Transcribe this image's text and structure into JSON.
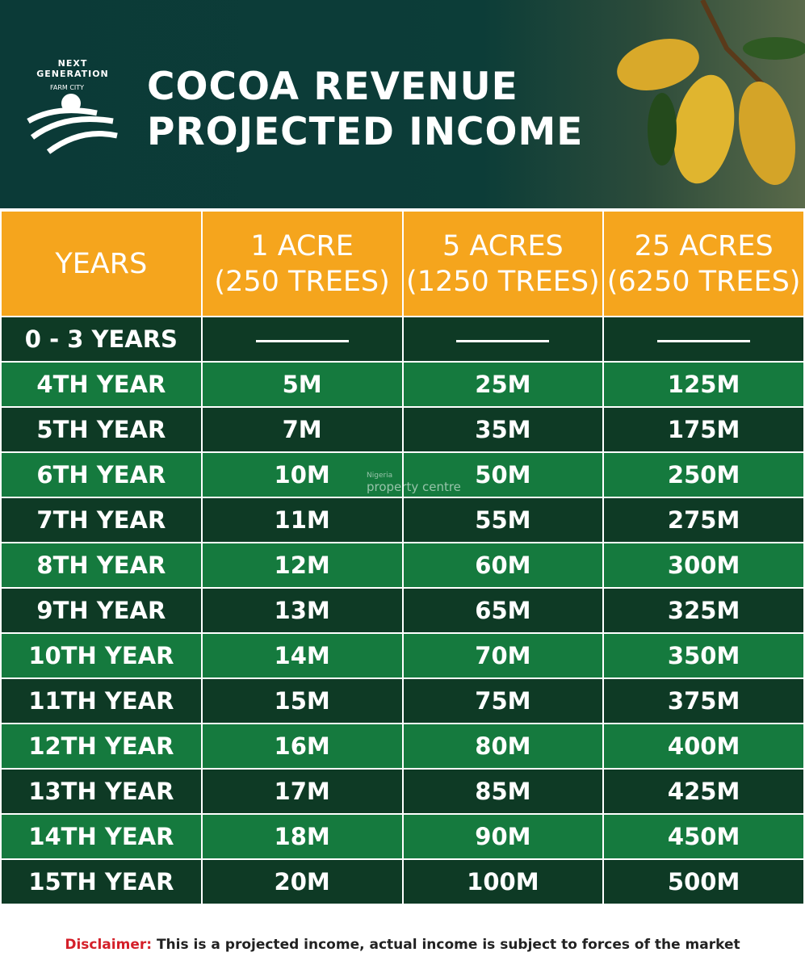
{
  "logo": {
    "name": "NEXT GENERATION",
    "sub": "FARM CITY"
  },
  "title": [
    "COCOA REVENUE",
    "PROJECTED INCOME"
  ],
  "table": {
    "header": [
      [
        "YEARS"
      ],
      [
        "1 ACRE",
        "(250 TREES)"
      ],
      [
        "5 ACRES",
        "(1250 TREES)"
      ],
      [
        "25 ACRES",
        "(6250 TREES)"
      ]
    ],
    "rows": [
      [
        "0 - 3 YEARS"
      ],
      [
        "4TH YEAR",
        "5M",
        "25M",
        "125M"
      ],
      [
        "5TH YEAR",
        "7M",
        "35M",
        "175M"
      ],
      [
        "6TH YEAR",
        "10M",
        "50M",
        "250M"
      ],
      [
        "7TH YEAR",
        "11M",
        "55M",
        "275M"
      ],
      [
        "8TH YEAR",
        "12M",
        "60M",
        "300M"
      ],
      [
        "9TH YEAR",
        "13M",
        "65M",
        "325M"
      ],
      [
        "10TH YEAR",
        "14M",
        "70M",
        "350M"
      ],
      [
        "11TH YEAR",
        "15M",
        "75M",
        "375M"
      ],
      [
        "12TH YEAR",
        "16M",
        "80M",
        "400M"
      ],
      [
        "13TH YEAR",
        "17M",
        "85M",
        "425M"
      ],
      [
        "14TH YEAR",
        "18M",
        "90M",
        "450M"
      ],
      [
        "15TH YEAR",
        "20M",
        "100M",
        "500M"
      ]
    ]
  },
  "watermark": [
    "Nigeria",
    "property centre"
  ],
  "disclaimer": {
    "label": "Disclaimer:",
    "text": "This is a projected income, actual income is subject to forces of the market"
  }
}
